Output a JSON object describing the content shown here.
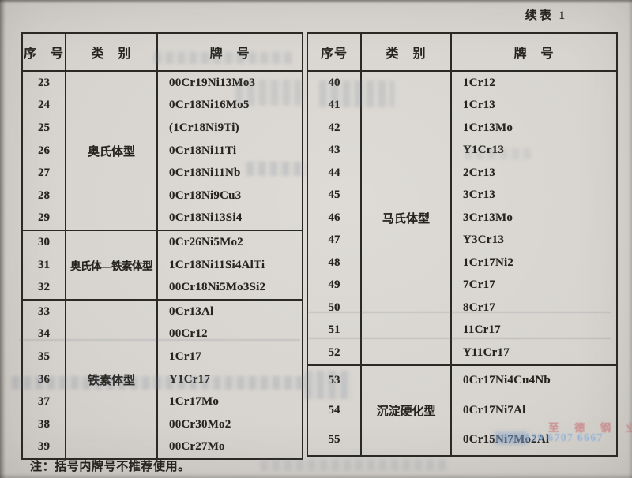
{
  "page": {
    "continuation_label": "续表 1",
    "footnote": "注：括号内牌号不推荐使用。"
  },
  "watermark": {
    "company": "至 德 钢 业",
    "phone": "139 6707 6667",
    "company_color": "#c98b8d",
    "phone_color": "#8fb2da"
  },
  "tables": [
    {
      "headers": [
        "序　号",
        "类　别",
        "牌　号"
      ],
      "groups": [
        {
          "category": "奥氏体型",
          "rows": [
            {
              "no": "23",
              "grade": "00Cr19Ni13Mo3"
            },
            {
              "no": "24",
              "grade": "0Cr18Ni16Mo5"
            },
            {
              "no": "25",
              "grade": "(1Cr18Ni9Ti)"
            },
            {
              "no": "26",
              "grade": "0Cr18Ni11Ti"
            },
            {
              "no": "27",
              "grade": "0Cr18Ni11Nb"
            },
            {
              "no": "28",
              "grade": "0Cr18Ni9Cu3"
            },
            {
              "no": "29",
              "grade": "0Cr18Ni13Si4"
            }
          ]
        },
        {
          "category": "奥氏体—铁素体型",
          "rows": [
            {
              "no": "30",
              "grade": "0Cr26Ni5Mo2"
            },
            {
              "no": "31",
              "grade": "1Cr18Ni11Si4AlTi"
            },
            {
              "no": "32",
              "grade": "00Cr18Ni5Mo3Si2"
            }
          ]
        },
        {
          "category": "铁素体型",
          "rows": [
            {
              "no": "33",
              "grade": "0Cr13Al"
            },
            {
              "no": "34",
              "grade": "00Cr12"
            },
            {
              "no": "35",
              "grade": "1Cr17"
            },
            {
              "no": "36",
              "grade": "Y1Cr17"
            },
            {
              "no": "37",
              "grade": "1Cr17Mo"
            },
            {
              "no": "38",
              "grade": "00Cr30Mo2"
            },
            {
              "no": "39",
              "grade": "00Cr27Mo"
            }
          ]
        }
      ]
    },
    {
      "headers": [
        "序号",
        "类　别",
        "牌　号"
      ],
      "groups": [
        {
          "category": "马氏体型",
          "rows": [
            {
              "no": "40",
              "grade": "1Cr12"
            },
            {
              "no": "41",
              "grade": "1Cr13"
            },
            {
              "no": "42",
              "grade": "1Cr13Mo"
            },
            {
              "no": "43",
              "grade": "Y1Cr13"
            },
            {
              "no": "44",
              "grade": "2Cr13"
            },
            {
              "no": "45",
              "grade": "3Cr13"
            },
            {
              "no": "46",
              "grade": "3Cr13Mo"
            },
            {
              "no": "47",
              "grade": "Y3Cr13"
            },
            {
              "no": "48",
              "grade": "1Cr17Ni2"
            },
            {
              "no": "49",
              "grade": "7Cr17"
            },
            {
              "no": "50",
              "grade": "8Cr17"
            },
            {
              "no": "51",
              "grade": "11Cr17"
            },
            {
              "no": "52",
              "grade": "Y11Cr17"
            }
          ]
        },
        {
          "category": "沉淀硬化型",
          "rows": [
            {
              "no": "53",
              "grade": "0Cr17Ni4Cu4Nb"
            },
            {
              "no": "54",
              "grade": "0Cr17Ni7Al"
            },
            {
              "no": "55",
              "grade": "0Cr15Ni7Mo2Al"
            }
          ]
        }
      ]
    }
  ]
}
